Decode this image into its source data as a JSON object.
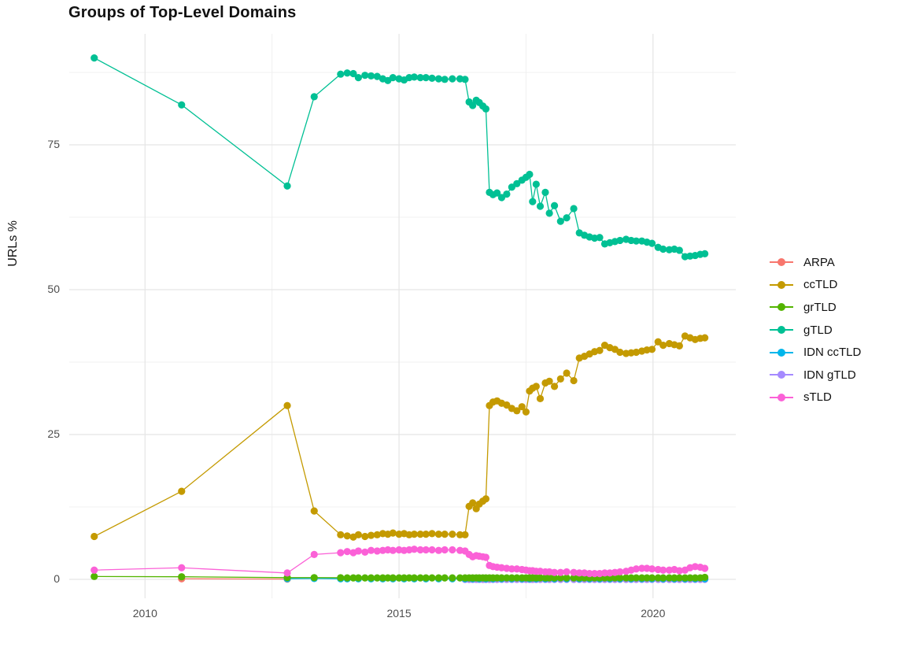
{
  "title": "Groups of Top-Level Domains",
  "chart_data": {
    "type": "line",
    "title": "Groups of Top-Level Domains",
    "xlabel": "",
    "ylabel": "URLs %",
    "x_ticks": [
      2010,
      2015,
      2020
    ],
    "y_ticks": [
      0,
      25,
      50,
      75
    ],
    "x_minor_gridlines": [
      2012.5,
      2017.5
    ],
    "y_minor_gridlines": [
      12.5,
      37.5,
      62.5,
      87.5
    ],
    "xlim": [
      2008.55,
      2021.65
    ],
    "ylim": [
      -3.3,
      94.2
    ],
    "grid": true,
    "legend_position": "right",
    "draw_order": [
      "ARPA",
      "IDN gTLD",
      "IDN ccTLD",
      "grTLD",
      "ccTLD",
      "gTLD",
      "sTLD"
    ],
    "series": [
      {
        "name": "ARPA",
        "color": "#F8766D",
        "x": [
          2010.72,
          2012.8
        ],
        "y": [
          0.1,
          0.05
        ]
      },
      {
        "name": "ccTLD",
        "color": "#C49A00",
        "x": [
          2009.0,
          2010.72,
          2012.8,
          2013.33,
          2013.85,
          2013.98,
          2014.1,
          2014.2,
          2014.33,
          2014.45,
          2014.57,
          2014.68,
          2014.78,
          2014.88,
          2015.0,
          2015.1,
          2015.2,
          2015.3,
          2015.42,
          2015.53,
          2015.65,
          2015.78,
          2015.9,
          2016.05,
          2016.2,
          2016.3,
          2016.38,
          2016.45,
          2016.52,
          2016.58,
          2016.65,
          2016.71,
          2016.78,
          2016.85,
          2016.93,
          2017.02,
          2017.12,
          2017.22,
          2017.32,
          2017.42,
          2017.5,
          2017.57,
          2017.63,
          2017.7,
          2017.78,
          2017.88,
          2017.96,
          2018.06,
          2018.18,
          2018.3,
          2018.44,
          2018.55,
          2018.65,
          2018.75,
          2018.85,
          2018.95,
          2019.05,
          2019.15,
          2019.25,
          2019.35,
          2019.47,
          2019.57,
          2019.67,
          2019.78,
          2019.88,
          2019.98,
          2020.1,
          2020.2,
          2020.32,
          2020.42,
          2020.52,
          2020.63,
          2020.73,
          2020.83,
          2020.93,
          2021.02
        ],
        "y": [
          7.4,
          15.2,
          30.0,
          11.8,
          7.7,
          7.5,
          7.3,
          7.7,
          7.4,
          7.6,
          7.7,
          7.9,
          7.8,
          8.0,
          7.8,
          7.9,
          7.7,
          7.8,
          7.8,
          7.8,
          7.9,
          7.8,
          7.8,
          7.8,
          7.7,
          7.7,
          12.6,
          13.2,
          12.2,
          13.0,
          13.5,
          13.9,
          30.0,
          30.6,
          30.8,
          30.4,
          30.1,
          29.5,
          29.1,
          29.8,
          28.9,
          32.5,
          33.0,
          33.3,
          31.2,
          33.9,
          34.2,
          33.3,
          34.6,
          35.6,
          34.3,
          38.2,
          38.5,
          38.9,
          39.3,
          39.5,
          40.4,
          40.0,
          39.7,
          39.2,
          39.0,
          39.1,
          39.2,
          39.4,
          39.6,
          39.7,
          41.0,
          40.4,
          40.7,
          40.5,
          40.3,
          42.0,
          41.7,
          41.4,
          41.6,
          41.7
        ]
      },
      {
        "name": "grTLD",
        "color": "#53B400",
        "x": [
          2009.0,
          2010.72,
          2012.8,
          2013.33,
          2013.85,
          2013.98,
          2014.1,
          2014.2,
          2014.33,
          2014.45,
          2014.57,
          2014.68,
          2014.78,
          2014.88,
          2015.0,
          2015.1,
          2015.2,
          2015.3,
          2015.42,
          2015.53,
          2015.65,
          2015.78,
          2015.9,
          2016.05,
          2016.2,
          2016.3,
          2016.38,
          2016.45,
          2016.52,
          2016.58,
          2016.65,
          2016.71,
          2016.78,
          2016.85,
          2016.93,
          2017.02,
          2017.12,
          2017.22,
          2017.32,
          2017.42,
          2017.5,
          2017.57,
          2017.63,
          2017.7,
          2017.78,
          2017.88,
          2017.96,
          2018.06,
          2018.18,
          2018.3,
          2018.44,
          2018.55,
          2018.65,
          2018.75,
          2018.85,
          2018.95,
          2019.05,
          2019.15,
          2019.25,
          2019.35,
          2019.47,
          2019.57,
          2019.67,
          2019.78,
          2019.88,
          2019.98,
          2020.1,
          2020.2,
          2020.32,
          2020.42,
          2020.52,
          2020.63,
          2020.73,
          2020.83,
          2020.93,
          2021.02
        ],
        "y": [
          0.5,
          0.45,
          0.3,
          0.3,
          0.28,
          0.25,
          0.25,
          0.25,
          0.25,
          0.25,
          0.25,
          0.25,
          0.25,
          0.25,
          0.25,
          0.25,
          0.25,
          0.25,
          0.25,
          0.25,
          0.25,
          0.25,
          0.25,
          0.25,
          0.25,
          0.25,
          0.25,
          0.25,
          0.25,
          0.25,
          0.25,
          0.25,
          0.25,
          0.25,
          0.25,
          0.25,
          0.25,
          0.25,
          0.25,
          0.25,
          0.25,
          0.25,
          0.25,
          0.25,
          0.25,
          0.25,
          0.25,
          0.25,
          0.25,
          0.25,
          0.25,
          0.25,
          0.25,
          0.25,
          0.25,
          0.25,
          0.25,
          0.25,
          0.25,
          0.25,
          0.25,
          0.25,
          0.25,
          0.25,
          0.25,
          0.25,
          0.25,
          0.25,
          0.25,
          0.25,
          0.25,
          0.25,
          0.25,
          0.25,
          0.25,
          0.35
        ]
      },
      {
        "name": "gTLD",
        "color": "#00C094",
        "x": [
          2009.0,
          2010.72,
          2012.8,
          2013.33,
          2013.85,
          2013.98,
          2014.1,
          2014.2,
          2014.33,
          2014.45,
          2014.57,
          2014.68,
          2014.78,
          2014.88,
          2015.0,
          2015.1,
          2015.2,
          2015.3,
          2015.42,
          2015.53,
          2015.65,
          2015.78,
          2015.9,
          2016.05,
          2016.2,
          2016.3,
          2016.38,
          2016.45,
          2016.52,
          2016.58,
          2016.65,
          2016.71,
          2016.78,
          2016.85,
          2016.93,
          2017.02,
          2017.12,
          2017.22,
          2017.32,
          2017.42,
          2017.5,
          2017.57,
          2017.63,
          2017.7,
          2017.78,
          2017.88,
          2017.96,
          2018.06,
          2018.18,
          2018.3,
          2018.44,
          2018.55,
          2018.65,
          2018.75,
          2018.85,
          2018.95,
          2019.05,
          2019.15,
          2019.25,
          2019.35,
          2019.47,
          2019.57,
          2019.67,
          2019.78,
          2019.88,
          2019.98,
          2020.1,
          2020.2,
          2020.32,
          2020.42,
          2020.52,
          2020.63,
          2020.73,
          2020.83,
          2020.93,
          2021.02
        ],
        "y": [
          90.0,
          81.9,
          67.9,
          83.3,
          87.2,
          87.4,
          87.3,
          86.6,
          87.0,
          86.9,
          86.8,
          86.4,
          86.1,
          86.6,
          86.4,
          86.2,
          86.6,
          86.7,
          86.6,
          86.6,
          86.5,
          86.4,
          86.3,
          86.4,
          86.4,
          86.3,
          82.4,
          81.8,
          82.7,
          82.3,
          81.7,
          81.2,
          66.8,
          66.4,
          66.7,
          65.9,
          66.5,
          67.7,
          68.3,
          68.9,
          69.4,
          69.9,
          65.2,
          68.2,
          64.4,
          66.8,
          63.2,
          64.5,
          61.8,
          62.4,
          64.0,
          59.8,
          59.4,
          59.1,
          58.9,
          59.0,
          57.9,
          58.1,
          58.3,
          58.5,
          58.7,
          58.5,
          58.4,
          58.4,
          58.2,
          58.0,
          57.3,
          57.0,
          56.9,
          57.0,
          56.8,
          55.7,
          55.8,
          55.9,
          56.1,
          56.2
        ]
      },
      {
        "name": "IDN ccTLD",
        "color": "#00B6EB",
        "x": [
          2012.8,
          2013.33,
          2013.85,
          2013.98,
          2014.2,
          2014.45,
          2014.68,
          2014.88,
          2015.1,
          2015.3,
          2015.53,
          2015.78,
          2016.05,
          2016.3,
          2016.45,
          2016.58,
          2016.71,
          2016.85,
          2017.02,
          2017.22,
          2017.42,
          2017.57,
          2017.7,
          2017.88,
          2018.06,
          2018.3,
          2018.55,
          2018.75,
          2018.95,
          2019.15,
          2019.35,
          2019.57,
          2019.78,
          2019.98,
          2020.2,
          2020.42,
          2020.63,
          2020.83,
          2021.02
        ],
        "y": [
          0.12,
          0.15,
          0.1,
          0.1,
          0.1,
          0.1,
          0.1,
          0.1,
          0.1,
          0.1,
          0.1,
          0.1,
          0.1,
          0.1,
          0.1,
          0.1,
          0.1,
          0.1,
          0.1,
          0.1,
          0.1,
          0.1,
          0.1,
          0.1,
          0.1,
          0.1,
          0.1,
          0.1,
          0.1,
          0.1,
          0.1,
          0.1,
          0.1,
          0.1,
          0.1,
          0.1,
          0.1,
          0.1,
          0.1
        ]
      },
      {
        "name": "IDN gTLD",
        "color": "#A58AFF",
        "x": [
          2016.3,
          2016.38,
          2016.45,
          2016.52,
          2016.58,
          2016.65,
          2016.71,
          2016.78,
          2016.85,
          2016.93,
          2017.02,
          2017.12,
          2017.22,
          2017.32,
          2017.42,
          2017.5,
          2017.57,
          2017.63,
          2017.7,
          2017.78,
          2017.88,
          2017.96,
          2018.06,
          2018.18,
          2018.3,
          2018.44,
          2018.55,
          2018.65,
          2018.75,
          2018.85,
          2018.95,
          2019.05,
          2019.15,
          2019.25,
          2019.35,
          2019.47,
          2019.57,
          2019.67,
          2019.78,
          2019.88,
          2019.98,
          2020.1,
          2020.2,
          2020.32,
          2020.42,
          2020.52,
          2020.63,
          2020.73,
          2020.83,
          2020.93,
          2021.02
        ],
        "y": [
          0.0,
          0.0,
          0.0,
          0.0,
          0.0,
          0.0,
          0.0,
          0.0,
          0.0,
          0.0,
          0.0,
          0.0,
          0.0,
          0.0,
          0.0,
          0.0,
          0.0,
          0.0,
          0.0,
          0.0,
          0.0,
          0.0,
          0.0,
          0.0,
          0.0,
          0.0,
          0.0,
          0.0,
          0.0,
          0.0,
          0.0,
          0.0,
          0.0,
          0.0,
          0.0,
          0.0,
          0.0,
          0.0,
          0.0,
          0.0,
          0.0,
          0.0,
          0.0,
          0.0,
          0.0,
          0.0,
          0.0,
          0.0,
          0.0,
          0.0,
          0.0
        ]
      },
      {
        "name": "sTLD",
        "color": "#FB61D7",
        "x": [
          2009.0,
          2010.72,
          2012.8,
          2013.33,
          2013.85,
          2013.98,
          2014.1,
          2014.2,
          2014.33,
          2014.45,
          2014.57,
          2014.68,
          2014.78,
          2014.88,
          2015.0,
          2015.1,
          2015.2,
          2015.3,
          2015.42,
          2015.53,
          2015.65,
          2015.78,
          2015.9,
          2016.05,
          2016.2,
          2016.3,
          2016.38,
          2016.45,
          2016.52,
          2016.58,
          2016.65,
          2016.71,
          2016.78,
          2016.85,
          2016.93,
          2017.02,
          2017.12,
          2017.22,
          2017.32,
          2017.42,
          2017.5,
          2017.57,
          2017.63,
          2017.7,
          2017.78,
          2017.88,
          2017.96,
          2018.06,
          2018.18,
          2018.3,
          2018.44,
          2018.55,
          2018.65,
          2018.75,
          2018.85,
          2018.95,
          2019.05,
          2019.15,
          2019.25,
          2019.35,
          2019.47,
          2019.57,
          2019.67,
          2019.78,
          2019.88,
          2019.98,
          2020.1,
          2020.2,
          2020.32,
          2020.42,
          2020.52,
          2020.63,
          2020.73,
          2020.83,
          2020.93,
          2021.02
        ],
        "y": [
          1.6,
          2.0,
          1.1,
          4.3,
          4.6,
          4.8,
          4.6,
          4.9,
          4.7,
          5.0,
          4.9,
          5.0,
          5.1,
          5.0,
          5.1,
          5.0,
          5.1,
          5.2,
          5.1,
          5.1,
          5.1,
          5.0,
          5.1,
          5.1,
          5.0,
          4.9,
          4.3,
          3.9,
          4.1,
          4.0,
          3.9,
          3.8,
          2.4,
          2.2,
          2.1,
          2.0,
          1.9,
          1.8,
          1.8,
          1.7,
          1.6,
          1.5,
          1.5,
          1.4,
          1.4,
          1.3,
          1.3,
          1.2,
          1.2,
          1.3,
          1.2,
          1.1,
          1.1,
          1.0,
          1.0,
          1.0,
          1.1,
          1.1,
          1.2,
          1.3,
          1.4,
          1.6,
          1.8,
          1.9,
          1.9,
          1.8,
          1.7,
          1.6,
          1.6,
          1.7,
          1.5,
          1.6,
          2.0,
          2.2,
          2.1,
          1.9
        ]
      }
    ]
  },
  "legend": {
    "items": [
      {
        "label": "ARPA"
      },
      {
        "label": "ccTLD"
      },
      {
        "label": "grTLD"
      },
      {
        "label": "gTLD"
      },
      {
        "label": "IDN ccTLD"
      },
      {
        "label": "IDN gTLD"
      },
      {
        "label": "sTLD"
      }
    ]
  }
}
